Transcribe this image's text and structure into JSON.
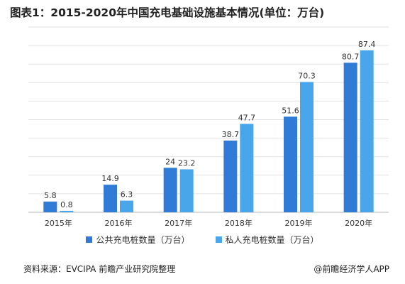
{
  "title": "图表1：2015-2020年中国充电基础设施基本情况(单位：万台)",
  "chart_data": {
    "type": "bar",
    "categories": [
      "2015年",
      "2016年",
      "2017年",
      "2018年",
      "2019年",
      "2020年"
    ],
    "series": [
      {
        "name": "公共充电桩数量（万台）",
        "values": [
          5.8,
          14.9,
          24,
          38.7,
          51.6,
          80.7
        ],
        "color": "#2f7bd6"
      },
      {
        "name": "私人充电桩数量（万台）",
        "values": [
          0.8,
          6.3,
          23.2,
          47.7,
          70.3,
          87.4
        ],
        "color": "#49a6ea"
      }
    ],
    "ylim": [
      0,
      100
    ],
    "grid": true,
    "legend_position": "bottom"
  },
  "footer": {
    "source": "资料来源：EVCIPA 前瞻产业研究院整理",
    "credit": "@前瞻经济学人APP"
  }
}
